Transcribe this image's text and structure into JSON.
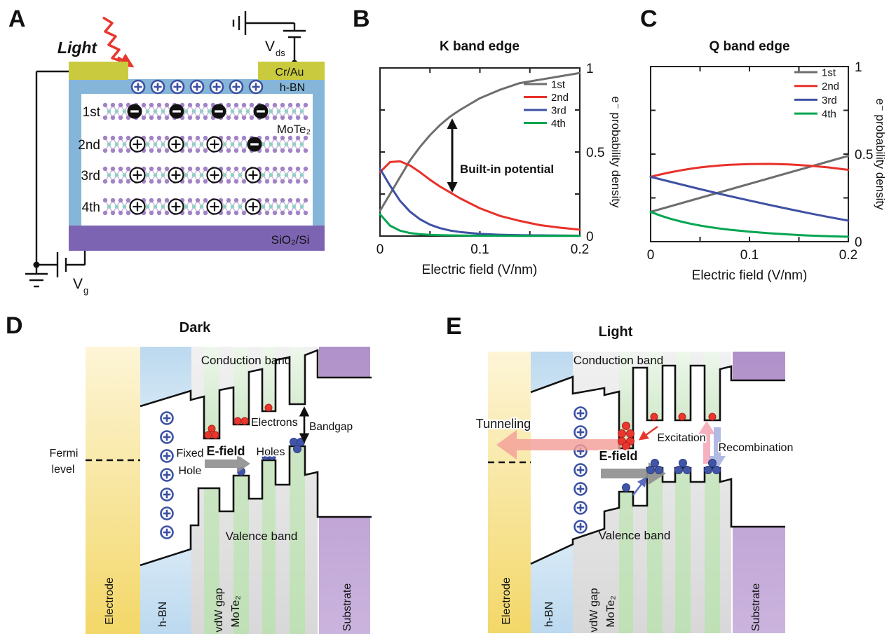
{
  "panel_a": {
    "letter": "A",
    "light_label": "Light",
    "vds": {
      "base": "V",
      "sub": "ds"
    },
    "vg": {
      "base": "V",
      "sub": "g"
    },
    "electrode_label": "Cr/Au",
    "hbn_label": "h-BN",
    "material_label": "MoTe₂",
    "substrate_label": "SiO₂/Si",
    "layers": [
      {
        "label": "1st",
        "color": "#1a1a1a"
      },
      {
        "label": "2nd",
        "color": "#e8312a"
      },
      {
        "label": "3rd",
        "color": "#3f51a5"
      },
      {
        "label": "4th",
        "color": "#00a550"
      }
    ],
    "colors": {
      "electrode": "#c9ca3e",
      "hbn": "#85b5d9",
      "substrate": "#7d64b2",
      "fixed_charge": "#3c51a3",
      "light": "#e8372e"
    }
  },
  "chart_data": [
    {
      "type": "line",
      "panel": "B",
      "title": "K band edge",
      "xlabel": "Electric field (V/nm)",
      "ylabel": "e⁻ probability density",
      "annotation": "Built-in potential",
      "xlim": [
        0,
        0.2
      ],
      "ylim": [
        0,
        1
      ],
      "grid": false,
      "legend_position": "top-right",
      "x_ticks": [
        {
          "v": 0,
          "label": "0"
        },
        {
          "v": 0.05,
          "label": ""
        },
        {
          "v": 0.1,
          "label": "0.1"
        },
        {
          "v": 0.15,
          "label": ""
        },
        {
          "v": 0.2,
          "label": "0.2"
        }
      ],
      "y_ticks": [
        {
          "v": 0,
          "label": "0"
        },
        {
          "v": 0.25,
          "label": ""
        },
        {
          "v": 0.5,
          "label": "0.5"
        },
        {
          "v": 0.75,
          "label": ""
        },
        {
          "v": 1,
          "label": "1"
        }
      ],
      "x": [
        0,
        0.01,
        0.02,
        0.03,
        0.04,
        0.05,
        0.06,
        0.07,
        0.08,
        0.1,
        0.12,
        0.14,
        0.16,
        0.18,
        0.2
      ],
      "series": [
        {
          "name": "1st",
          "color": "#6e6e6e",
          "values": [
            0.15,
            0.25,
            0.35,
            0.45,
            0.53,
            0.6,
            0.66,
            0.71,
            0.75,
            0.82,
            0.87,
            0.91,
            0.93,
            0.95,
            0.97
          ]
        },
        {
          "name": "2nd",
          "color": "#e8312a",
          "values": [
            0.38,
            0.44,
            0.445,
            0.42,
            0.38,
            0.335,
            0.295,
            0.26,
            0.225,
            0.165,
            0.12,
            0.09,
            0.065,
            0.05,
            0.038
          ]
        },
        {
          "name": "3rd",
          "color": "#3f51a5",
          "values": [
            0.4,
            0.3,
            0.21,
            0.145,
            0.1,
            0.068,
            0.047,
            0.033,
            0.024,
            0.013,
            0.008,
            0.005,
            0.004,
            0.003,
            0.002
          ]
        },
        {
          "name": "4th",
          "color": "#00a550",
          "values": [
            0.13,
            0.062,
            0.032,
            0.018,
            0.011,
            0.007,
            0.005,
            0.004,
            0.003,
            0.002,
            0.002,
            0.001,
            0.001,
            0.001,
            0.001
          ]
        }
      ]
    },
    {
      "type": "line",
      "panel": "C",
      "title": "Q band edge",
      "xlabel": "Electric field (V/nm)",
      "ylabel": "e⁻ probability density",
      "annotation": "",
      "xlim": [
        0,
        0.2
      ],
      "ylim": [
        0,
        1
      ],
      "grid": false,
      "legend_position": "top-right",
      "x_ticks": [
        {
          "v": 0,
          "label": "0"
        },
        {
          "v": 0.05,
          "label": ""
        },
        {
          "v": 0.1,
          "label": "0.1"
        },
        {
          "v": 0.15,
          "label": ""
        },
        {
          "v": 0.2,
          "label": "0.2"
        }
      ],
      "y_ticks": [
        {
          "v": 0,
          "label": "0"
        },
        {
          "v": 0.25,
          "label": ""
        },
        {
          "v": 0.5,
          "label": "0.5"
        },
        {
          "v": 0.75,
          "label": ""
        },
        {
          "v": 1,
          "label": "1"
        }
      ],
      "x": [
        0,
        0.01,
        0.02,
        0.03,
        0.04,
        0.05,
        0.06,
        0.07,
        0.08,
        0.1,
        0.12,
        0.14,
        0.16,
        0.18,
        0.2
      ],
      "series": [
        {
          "name": "1st",
          "color": "#6e6e6e",
          "values": [
            0.17,
            0.186,
            0.202,
            0.218,
            0.234,
            0.25,
            0.266,
            0.282,
            0.298,
            0.33,
            0.362,
            0.394,
            0.426,
            0.458,
            0.49
          ]
        },
        {
          "name": "2nd",
          "color": "#e8312a",
          "values": [
            0.37,
            0.384,
            0.396,
            0.407,
            0.416,
            0.424,
            0.43,
            0.435,
            0.439,
            0.443,
            0.444,
            0.441,
            0.434,
            0.424,
            0.41
          ]
        },
        {
          "name": "3rd",
          "color": "#3f51a5",
          "values": [
            0.37,
            0.356,
            0.342,
            0.328,
            0.314,
            0.3,
            0.287,
            0.273,
            0.26,
            0.235,
            0.21,
            0.186,
            0.163,
            0.141,
            0.12
          ]
        },
        {
          "name": "4th",
          "color": "#00a550",
          "values": [
            0.17,
            0.149,
            0.131,
            0.116,
            0.103,
            0.092,
            0.083,
            0.075,
            0.068,
            0.057,
            0.048,
            0.041,
            0.035,
            0.031,
            0.028
          ]
        }
      ]
    }
  ],
  "panel_b": {
    "letter": "B"
  },
  "panel_c": {
    "letter": "C"
  },
  "panel_d": {
    "letter": "D",
    "title": "Dark",
    "conduction_label": "Conduction band",
    "valence_label": "Valence band",
    "fermi_line1": "Fermi",
    "fermi_line2": "level",
    "fixed_line1": "Fixed",
    "fixed_line2": "Hole",
    "efield_label": "E-field",
    "electrons_label": "Electrons",
    "holes_label": "Holes",
    "bandgap_label": "Bandgap",
    "electrode_label": "Electrode",
    "hbn_label": "h-BN",
    "vdw_label": "vdW gap",
    "material_label": "MoTe₂",
    "substrate_label": "Substrate"
  },
  "panel_e": {
    "letter": "E",
    "title": "Light",
    "conduction_label": "Conduction band",
    "valence_label": "Valence band",
    "tunneling_label": "Tunneling",
    "excitation_label": "Excitation",
    "recombination_label": "Recombination",
    "efield_label": "E-field",
    "electrode_label": "Electrode",
    "hbn_label": "h-BN",
    "vdw_label": "vdW gap",
    "material_label": "MoTe₂",
    "substrate_label": "Substrate"
  },
  "diagram_colors": {
    "electrode_band": "#f4d979",
    "hbn_band": "#c8e0f2",
    "mote2_stripe": "#c3e2bb",
    "vdw_stripe": "#dcdcdc",
    "substrate_band": "#b191c9",
    "electron_dot": "#e8372e",
    "hole_dot": "#4055a8",
    "tunneling_arrow": "#f49f98",
    "excitation_arrow": "#f5a9b7",
    "recombination_arrow": "#a8b2e0",
    "efield_arrow": "#909090"
  }
}
